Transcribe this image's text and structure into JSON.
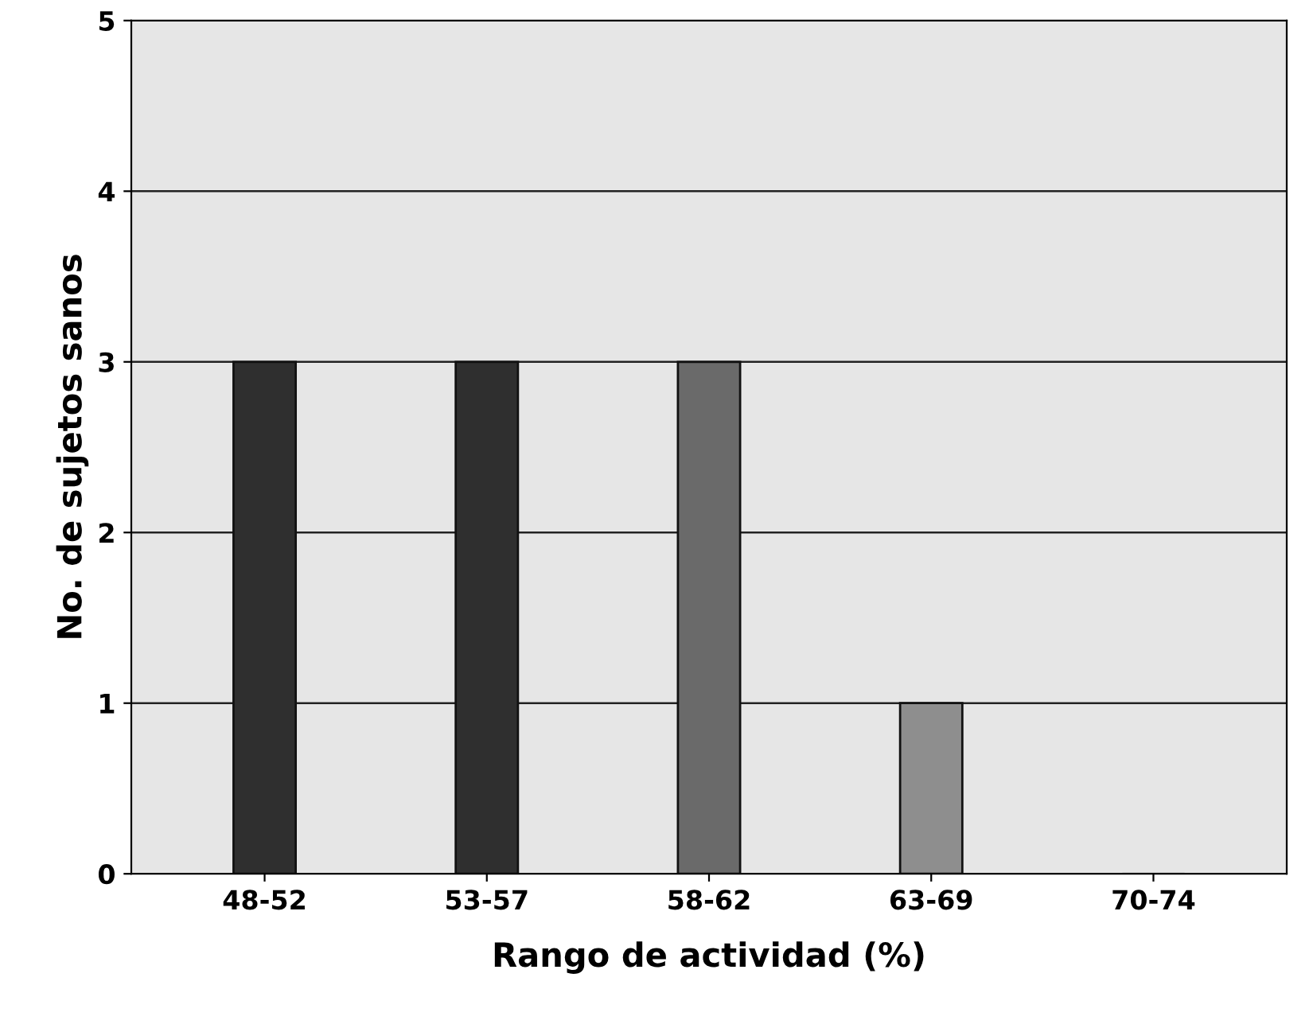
{
  "chart_data": {
    "type": "bar",
    "xlabel": "Rango de actividad (%)",
    "ylabel": "No. de sujetos sanos",
    "categories": [
      "48-52",
      "53-57",
      "58-62",
      "63-69",
      "70-74"
    ],
    "values": [
      3,
      3,
      3,
      1,
      0
    ],
    "colors": [
      "#2f2f2f",
      "#2f2f2f",
      "#6a6a6a",
      "#8e8e8e",
      "#a0a0a0"
    ],
    "ylim": [
      0,
      5
    ],
    "yticks": [
      0,
      1,
      2,
      3,
      4,
      5
    ],
    "grid": "y"
  }
}
